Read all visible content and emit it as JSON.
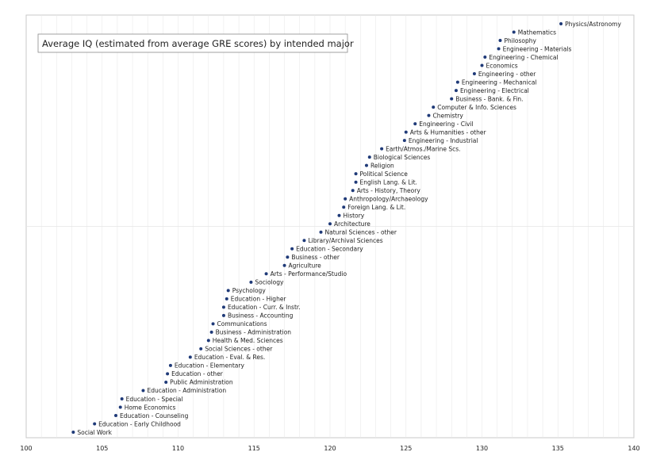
{
  "chart_data": {
    "type": "scatter",
    "title": "Average IQ (estimated from average GRE scores) by intended major",
    "xlim": [
      100,
      140
    ],
    "ylim": [
      0,
      1
    ],
    "x_ticks": [
      100,
      105,
      110,
      115,
      120,
      125,
      130,
      135,
      140
    ],
    "grid": "vertical minor lines, one horizontal midline",
    "points": [
      {
        "label": "Physics/Astronomy",
        "x": 135.2
      },
      {
        "label": "Mathematics",
        "x": 132.1
      },
      {
        "label": "Philosophy",
        "x": 131.2
      },
      {
        "label": "Engineering - Materials",
        "x": 131.1
      },
      {
        "label": "Engineering - Chemical",
        "x": 130.2
      },
      {
        "label": "Economics",
        "x": 130.0
      },
      {
        "label": "Engineering - other",
        "x": 129.5
      },
      {
        "label": "Engineering - Mechanical",
        "x": 128.4
      },
      {
        "label": "Engineering - Electrical",
        "x": 128.3
      },
      {
        "label": "Business - Bank. & Fin.",
        "x": 128.0
      },
      {
        "label": "Computer & Info. Sciences",
        "x": 126.8
      },
      {
        "label": "Chemistry",
        "x": 126.5
      },
      {
        "label": "Engineering - Civil",
        "x": 125.6
      },
      {
        "label": "Arts & Humanities - other",
        "x": 125.0
      },
      {
        "label": "Engineering - Industrial",
        "x": 124.9
      },
      {
        "label": "Earth/Atmos./Marine Scs.",
        "x": 123.4
      },
      {
        "label": "Biological Sciences",
        "x": 122.6
      },
      {
        "label": "Religion",
        "x": 122.4
      },
      {
        "label": "Political Science",
        "x": 121.7
      },
      {
        "label": "English Lang. & Lit.",
        "x": 121.7
      },
      {
        "label": "Arts - History, Theory",
        "x": 121.5
      },
      {
        "label": "Anthropology/Archaeology",
        "x": 121.0
      },
      {
        "label": "Foreign Lang. & Lit.",
        "x": 120.9
      },
      {
        "label": "History",
        "x": 120.6
      },
      {
        "label": "Architecture",
        "x": 120.0
      },
      {
        "label": "Natural Sciences - other",
        "x": 119.4
      },
      {
        "label": "Library/Archival Sciences",
        "x": 118.3
      },
      {
        "label": "Education - Secondary",
        "x": 117.5
      },
      {
        "label": "Business - other",
        "x": 117.2
      },
      {
        "label": "Agriculture",
        "x": 117.0
      },
      {
        "label": "Arts - Performance/Studio",
        "x": 115.8
      },
      {
        "label": "Sociology",
        "x": 114.8
      },
      {
        "label": "Psychology",
        "x": 113.3
      },
      {
        "label": "Education - Higher",
        "x": 113.2
      },
      {
        "label": "Education - Curr. & Instr.",
        "x": 113.0
      },
      {
        "label": "Business - Accounting",
        "x": 113.0
      },
      {
        "label": "Communications",
        "x": 112.3
      },
      {
        "label": "Business - Administration",
        "x": 112.2
      },
      {
        "label": "Health & Med. Sciences",
        "x": 112.0
      },
      {
        "label": "Social Sciences - other",
        "x": 111.5
      },
      {
        "label": "Education - Eval. & Res.",
        "x": 110.8
      },
      {
        "label": "Education - Elementary",
        "x": 109.5
      },
      {
        "label": "Education - other",
        "x": 109.3
      },
      {
        "label": "Public Administration",
        "x": 109.2
      },
      {
        "label": "Education - Administration",
        "x": 107.7
      },
      {
        "label": "Education - Special",
        "x": 106.3
      },
      {
        "label": "Home Economics",
        "x": 106.2
      },
      {
        "label": "Education - Counseling",
        "x": 105.9
      },
      {
        "label": "Education - Early Childhood",
        "x": 104.5
      },
      {
        "label": "Social Work",
        "x": 103.1
      }
    ]
  }
}
